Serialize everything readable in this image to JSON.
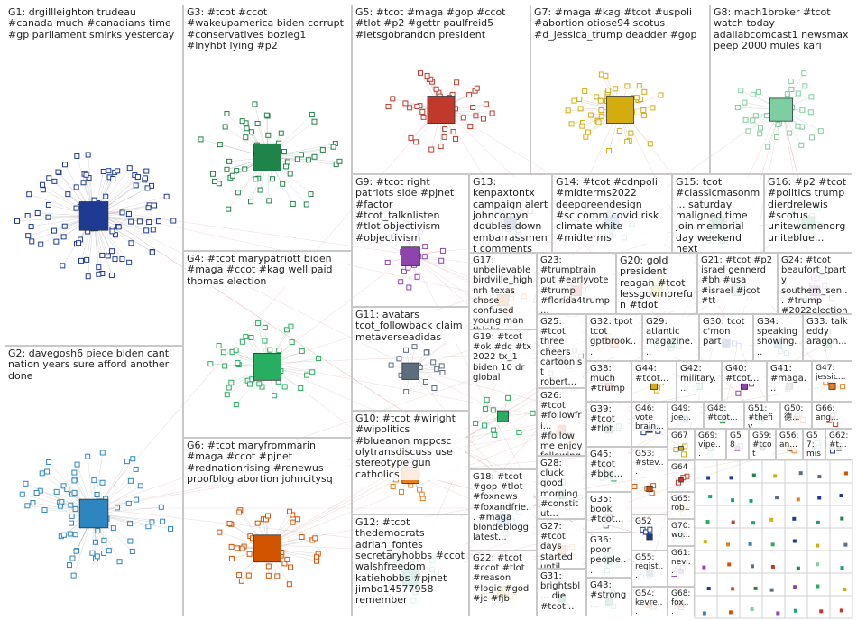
{
  "groups": [
    {
      "label": "G1: drgillleighton trudeau #canada much #canadians time #gp parliament smirks yesterday"
    },
    {
      "label": "G2: davegosh6 piece biden cant nation years sure afford another done"
    },
    {
      "label": "G3: #tcot #ccot #wakeupamerica biden corrupt #conservatives bozieg1 #lnyhbt lying #p2"
    },
    {
      "label": "G4: #tcot marypatriott biden #maga #ccot #kag well paid thomas election"
    },
    {
      "label": "G6: #tcot maryfrommarin #maga #ccot #pjnet #rednationrising #renewus proofblog abortion johncitysq"
    },
    {
      "label": "G5: #tcot #maga #gop #ccot #tlot #p2 #gettr paulfreid5 #letsgobrandon president"
    },
    {
      "label": "G7: #maga #kag #tcot #uspoli #abortion otiose94 scotus #d_jessica_trump deadder #gop"
    },
    {
      "label": "G8: mach1broker #tcot watch today adaliabcomcast1 newsmax peep 2000 mules kari"
    },
    {
      "label": "G9: #tcot right patriots side #pjnet #factor #tcot_talknlisten #tlot objectivism #objectivism"
    },
    {
      "label": "G11: avatars tcot_followback claim metaverseadidas"
    },
    {
      "label": "G10: #tcot #wiright #wipolitics #blueanon mppcsc olytransdiscuss use stereotype gun catholics"
    },
    {
      "label": "G12: #tcot thedemocrats adrian_fontes secretaryhobbs #ccot walshfreedom katiehobbs #pjnet jimbo14577958 remember"
    },
    {
      "label": "G13: kenpaxtontx campaign alert johncornyn doubles down embarrassment comments takes step"
    },
    {
      "label": "G14: #tcot #cdnpoli #midterms2022 deepgreendesign #scicomm covid risk climate white #midterms"
    },
    {
      "label": "G15: tcot #classicmasonm... saturday maligned time join memorial day weekend next"
    },
    {
      "label": "G16: #p2 #tcot #politics trump dierdrelewis #scotus unitewomenorg uniteblue..."
    },
    {
      "label": "G17: unbelievable birdville_high nrh texas chose confused young man thinks..."
    },
    {
      "label": "G23: #trumptrain put #earlyvote #trump #florida4trump..."
    },
    {
      "label": "G20: gold president reagan #tcot lessgovmorefun #tdot"
    },
    {
      "label": "G21: #tcot #p2 israel gennerd #bh #usa #israel #jcot #tt"
    },
    {
      "label": "G24: #tcot beaufort_tparty southern_sen... #trump #2022election..."
    },
    {
      "label": "G25: #tcot three cheers cartoonist robert..."
    },
    {
      "label": "G32: tpot tcot gptbrook..."
    },
    {
      "label": "G29: atlantic magazine..."
    },
    {
      "label": "G30: tcot c'mon part"
    },
    {
      "label": "G34: speaking showing..."
    },
    {
      "label": "G33: talk eddy aragon..."
    },
    {
      "label": "G19: #tcot #ok #dc #tx 2022 tx_1 biden 10 dr global"
    },
    {
      "label": "G26: #tcot #followfri... #followme enjoy following..."
    },
    {
      "label": "G38: much #trump..."
    },
    {
      "label": "G44: #tcot..."
    },
    {
      "label": "G42: military..."
    },
    {
      "label": "G40: #tcot..."
    },
    {
      "label": "G41: #maga..."
    },
    {
      "label": "G47: jessic..."
    },
    {
      "label": "G39: #tcot #tlot..."
    },
    {
      "label": "G46: vote brain..."
    },
    {
      "label": "G49: joe..."
    },
    {
      "label": "G48: #tcot..."
    },
    {
      "label": "G51: #thefiv..."
    },
    {
      "label": "G50: 德..."
    },
    {
      "label": "G66: ang..."
    },
    {
      "label": "G67"
    },
    {
      "label": "G69: vipe..."
    },
    {
      "label": "G58"
    },
    {
      "label": "G59: #tcot"
    },
    {
      "label": "G56: an..."
    },
    {
      "label": "G57: mis..."
    },
    {
      "label": "G62: #t..."
    },
    {
      "label": "G18: #tcot #gop #tlot #foxnews #foxandfrie... #maga blondeblogg latest..."
    },
    {
      "label": "G28: cluck good morning #constitut..."
    },
    {
      "label": "G45: #tcot #bbc..."
    },
    {
      "label": "G53: #stev..."
    },
    {
      "label": "G64"
    },
    {
      "label": "G65: rob..."
    },
    {
      "label": "G70: wo..."
    },
    {
      "label": "G61: nev..."
    },
    {
      "label": "G35: book #tcot..."
    },
    {
      "label": "G27: #tcot days started until end..."
    },
    {
      "label": "G36: poor people..."
    },
    {
      "label": "G52"
    },
    {
      "label": "G55: regist..."
    },
    {
      "label": "G31: brightsbl... die #tcot..."
    },
    {
      "label": "G43: #strong..."
    },
    {
      "label": "G54: kevre..."
    },
    {
      "label": "G68: fox..."
    },
    {
      "label": "G22: #tcot #ccot #tlot #reason #logic #god #jc #fjb"
    }
  ]
}
